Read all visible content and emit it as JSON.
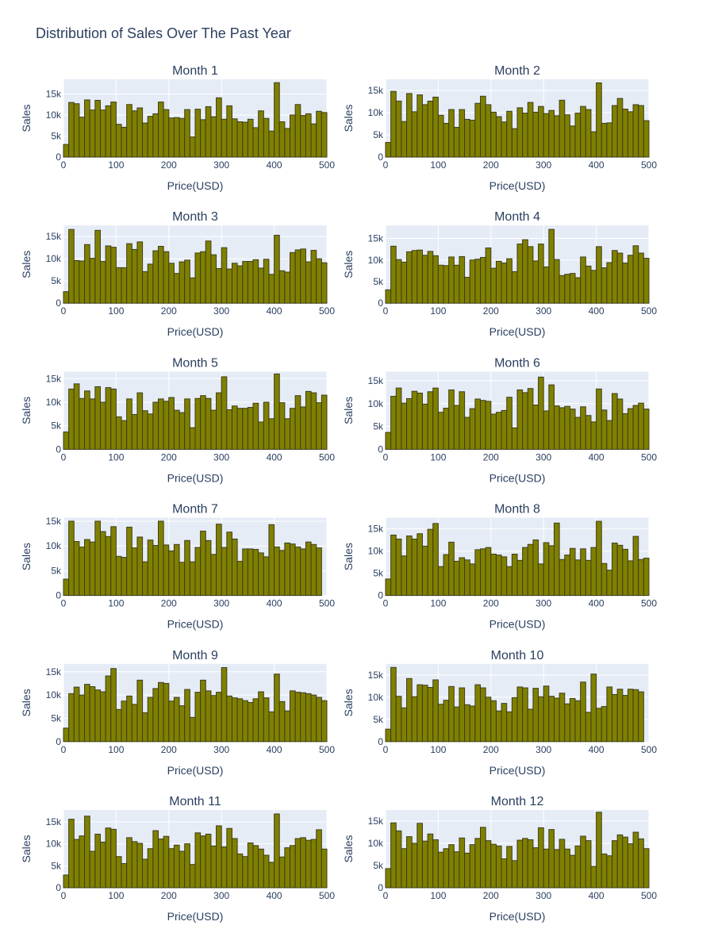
{
  "title": "Distribution of Sales Over The Past Year",
  "colors": {
    "bar_fill": "#808000",
    "bar_stroke": "#3d3d1a",
    "plot_bg": "#e5ecf6",
    "grid": "#ffffff",
    "text": "#2a3f5f"
  },
  "chart_data": {
    "type": "bar",
    "subplot_layout": "6 rows x 2 columns grid",
    "grid": true,
    "legend": "none",
    "xlabel": "Price(USD)",
    "ylabel": "Sales",
    "xlim": [
      0,
      500
    ],
    "bin_width": 10,
    "bins_start": [
      0,
      10,
      20,
      30,
      40,
      50,
      60,
      70,
      80,
      90,
      100,
      110,
      120,
      130,
      140,
      150,
      160,
      170,
      180,
      190,
      200,
      210,
      220,
      230,
      240,
      250,
      260,
      270,
      280,
      290,
      300,
      310,
      320,
      330,
      340,
      350,
      360,
      370,
      380,
      390,
      400,
      410,
      420,
      430,
      440,
      450,
      460,
      470,
      480,
      490
    ],
    "x_ticks": [
      0,
      100,
      200,
      300,
      400,
      500
    ],
    "y_ticks": [
      0,
      5000,
      10000,
      15000
    ],
    "y_tick_labels": [
      "0",
      "5k",
      "10k",
      "15k"
    ],
    "panels": [
      {
        "title": "Month 1",
        "ylim": [
          0,
          18500
        ],
        "values": [
          3000,
          13000,
          12700,
          9500,
          13600,
          11200,
          13500,
          11200,
          12200,
          13100,
          7800,
          7100,
          12500,
          11000,
          11700,
          8100,
          9700,
          10300,
          13100,
          11300,
          9300,
          9400,
          9200,
          11300,
          4800,
          11400,
          8900,
          12000,
          9600,
          14100,
          9000,
          12200,
          9100,
          8400,
          8300,
          9000,
          7000,
          11000,
          9200,
          6200,
          17700,
          8400,
          6800,
          10000,
          12500,
          9900,
          10300,
          7900,
          10900,
          10600
        ]
      },
      {
        "title": "Month 2",
        "ylim": [
          0,
          17500
        ],
        "values": [
          3300,
          14800,
          12600,
          8000,
          14300,
          10200,
          14000,
          11800,
          12600,
          13500,
          9400,
          7600,
          10700,
          6700,
          10700,
          8500,
          8300,
          12100,
          13700,
          11800,
          10100,
          9100,
          7900,
          10300,
          6400,
          11100,
          9900,
          12300,
          10100,
          11400,
          9800,
          10500,
          9300,
          12800,
          9500,
          7000,
          9900,
          11400,
          10700,
          5700,
          16700,
          7600,
          7700,
          11600,
          13200,
          10800,
          10200,
          11800,
          11600,
          8200
        ]
      },
      {
        "title": "Month 3",
        "ylim": [
          0,
          17500
        ],
        "values": [
          2600,
          16600,
          9600,
          9500,
          13200,
          10100,
          16400,
          9400,
          12900,
          12600,
          8000,
          8000,
          13400,
          12100,
          13800,
          7100,
          8800,
          11800,
          12800,
          11600,
          9000,
          6700,
          9300,
          9700,
          5700,
          11300,
          11600,
          14000,
          10900,
          7800,
          12500,
          7700,
          9000,
          8400,
          9400,
          9400,
          9800,
          7900,
          9900,
          6500,
          15300,
          7300,
          7000,
          11400,
          12000,
          12200,
          9300,
          11900,
          10000,
          9100
        ]
      },
      {
        "title": "Month 4",
        "ylim": [
          0,
          18000
        ],
        "values": [
          3100,
          13200,
          10100,
          9500,
          11900,
          12200,
          12300,
          11100,
          12000,
          11000,
          8800,
          8700,
          10700,
          8800,
          10800,
          6000,
          10000,
          10200,
          10600,
          12800,
          8100,
          9700,
          9300,
          10300,
          7300,
          13700,
          14700,
          13100,
          9800,
          13700,
          8400,
          17100,
          10100,
          6400,
          6700,
          6900,
          5900,
          10700,
          8600,
          7600,
          13100,
          8200,
          9400,
          12200,
          11600,
          9300,
          11100,
          13300,
          11600,
          10400
        ]
      },
      {
        "title": "Month 5",
        "ylim": [
          0,
          16500
        ],
        "values": [
          3700,
          12800,
          13900,
          10800,
          12400,
          10700,
          13300,
          10000,
          13100,
          12800,
          6900,
          6100,
          10700,
          7400,
          12000,
          8200,
          7500,
          10000,
          10700,
          10200,
          11000,
          8300,
          7800,
          10700,
          4600,
          10800,
          11400,
          10800,
          8300,
          12000,
          15400,
          8400,
          9200,
          8700,
          8700,
          8900,
          9800,
          5800,
          10000,
          6500,
          16000,
          9900,
          6500,
          8700,
          11400,
          9000,
          12300,
          12000,
          9900,
          11500
        ]
      },
      {
        "title": "Month 6",
        "ylim": [
          0,
          17000
        ],
        "values": [
          3700,
          11600,
          13400,
          10100,
          11100,
          12700,
          12300,
          9900,
          12600,
          13400,
          8100,
          9000,
          13000,
          9600,
          12600,
          7000,
          8900,
          11000,
          10700,
          10500,
          7700,
          8100,
          8500,
          11400,
          4700,
          13000,
          12400,
          13300,
          9700,
          15800,
          8400,
          14100,
          9500,
          9100,
          9400,
          8800,
          7000,
          9300,
          7400,
          6000,
          13200,
          8600,
          6300,
          12200,
          11000,
          7800,
          8900,
          9600,
          10100,
          8800
        ]
      },
      {
        "title": "Month 7",
        "ylim": [
          0,
          15700
        ],
        "values": [
          3300,
          15000,
          10900,
          9800,
          11300,
          10800,
          15000,
          12900,
          11900,
          13900,
          7900,
          7700,
          13800,
          9600,
          11800,
          6800,
          11200,
          10100,
          15000,
          10200,
          9000,
          10300,
          6700,
          11100,
          6800,
          9700,
          13000,
          11100,
          8300,
          14400,
          9700,
          12800,
          11400,
          6900,
          9400,
          9400,
          9300,
          8600,
          7800,
          14300,
          9800,
          9100,
          10600,
          10400,
          9800,
          9400,
          10800,
          10300,
          9600,
          null
        ]
      },
      {
        "title": "Month 8",
        "ylim": [
          0,
          17500
        ],
        "values": [
          3700,
          13600,
          12700,
          8900,
          13400,
          12700,
          13900,
          11100,
          14900,
          16200,
          6500,
          9200,
          12000,
          7700,
          8500,
          8000,
          7100,
          10300,
          10500,
          10800,
          9300,
          9100,
          8700,
          6500,
          9300,
          7900,
          10800,
          11500,
          12500,
          7100,
          11900,
          11200,
          16300,
          8100,
          9100,
          10600,
          8000,
          10500,
          7900,
          10800,
          16700,
          7200,
          5700,
          11800,
          11300,
          10400,
          7800,
          13300,
          8100,
          8400
        ]
      },
      {
        "title": "Month 9",
        "ylim": [
          0,
          16700
        ],
        "values": [
          2900,
          10300,
          11700,
          10000,
          12300,
          11800,
          11100,
          10700,
          14100,
          15700,
          6900,
          8700,
          9800,
          8000,
          13200,
          6200,
          9500,
          11400,
          12700,
          12500,
          8700,
          9500,
          7700,
          11200,
          5200,
          10600,
          13200,
          10900,
          9900,
          10600,
          15900,
          9800,
          9400,
          9200,
          8800,
          8400,
          9200,
          10700,
          9400,
          6400,
          14500,
          8600,
          6600,
          10900,
          10600,
          10500,
          10300,
          10000,
          9500,
          8800
        ]
      },
      {
        "title": "Month 10",
        "ylim": [
          0,
          17500
        ],
        "values": [
          2800,
          16700,
          10200,
          7600,
          14200,
          10100,
          12800,
          12700,
          12200,
          13900,
          8400,
          9300,
          12400,
          7800,
          12100,
          8300,
          8000,
          12800,
          12100,
          10000,
          9200,
          6900,
          8600,
          6700,
          9900,
          12300,
          12100,
          7300,
          12000,
          10100,
          12500,
          10200,
          9800,
          10900,
          8500,
          9700,
          9200,
          13400,
          6600,
          15200,
          7500,
          7900,
          12300,
          10600,
          11800,
          10400,
          11800,
          11700,
          11200,
          null
        ]
      },
      {
        "title": "Month 11",
        "ylim": [
          0,
          17700
        ],
        "values": [
          2900,
          15600,
          11000,
          11800,
          16300,
          8300,
          12200,
          10400,
          13600,
          13300,
          7100,
          5500,
          11400,
          10500,
          10100,
          6500,
          8900,
          13000,
          11100,
          11700,
          8900,
          9700,
          8300,
          10000,
          5300,
          12500,
          11800,
          12200,
          9500,
          14100,
          9300,
          13500,
          11200,
          7700,
          7100,
          10200,
          9600,
          8800,
          7400,
          5800,
          16800,
          7000,
          9100,
          9600,
          11200,
          11400,
          10800,
          11000,
          13200,
          8800
        ]
      },
      {
        "title": "Month 12",
        "ylim": [
          0,
          17500
        ],
        "values": [
          4300,
          14600,
          12800,
          8800,
          11500,
          10000,
          14500,
          10500,
          12100,
          10800,
          8000,
          8800,
          9700,
          8100,
          11200,
          7800,
          9700,
          11100,
          13600,
          10600,
          9800,
          9400,
          6500,
          9300,
          6100,
          10700,
          11100,
          10800,
          9000,
          13500,
          8700,
          13100,
          8600,
          10900,
          8700,
          7300,
          9400,
          11600,
          10600,
          4800,
          17000,
          7600,
          7200,
          10600,
          11900,
          11400,
          9900,
          12500,
          11000,
          8800
        ]
      }
    ]
  }
}
